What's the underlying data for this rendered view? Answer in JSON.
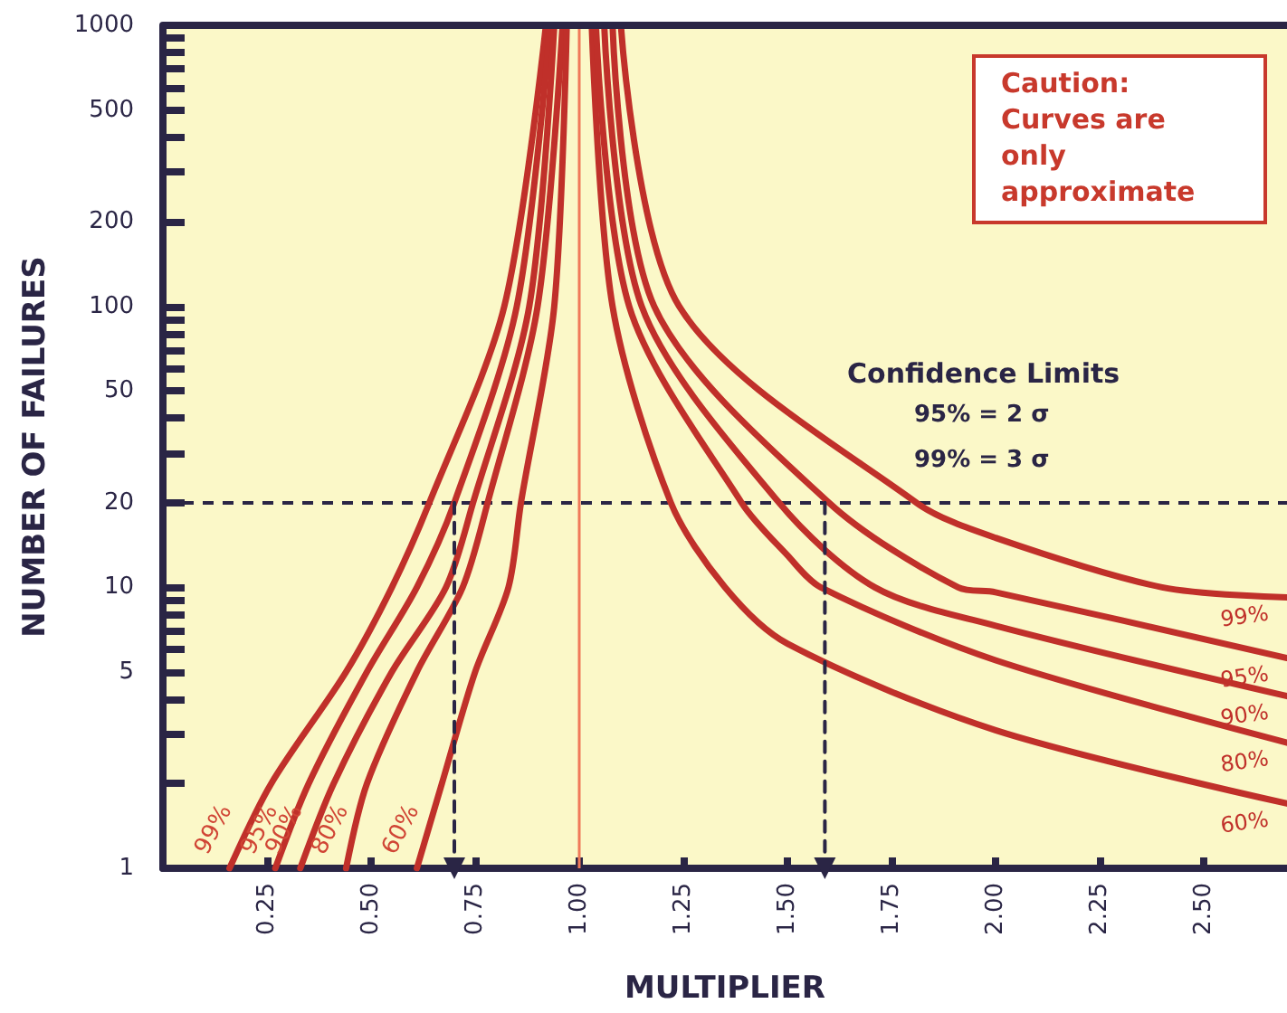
{
  "chart_data": {
    "type": "line",
    "xlabel": "MULTIPLIER",
    "ylabel": "NUMBER OF FAILURES",
    "annotations": [
      "Caution: Curves are only approximate",
      "Confidence Limits",
      "95% = 2 σ",
      "99% = 3 σ"
    ],
    "log": "y",
    "grid": false,
    "legend": false,
    "marker": "none",
    "xlim": [
      0,
      2.7
    ],
    "xticks": [
      {
        "value": 0.25,
        "label": "0.25"
      },
      {
        "value": 0.5,
        "label": "0.50"
      },
      {
        "value": 0.75,
        "label": "0.75"
      },
      {
        "value": 1,
        "label": "1.00"
      },
      {
        "value": 1.25,
        "label": "1.25"
      },
      {
        "value": 1.5,
        "label": "1.50"
      },
      {
        "value": 1.75,
        "label": "1.75"
      },
      {
        "value": 2,
        "label": "2.00"
      },
      {
        "value": 2.25,
        "label": "2.25"
      },
      {
        "value": 2.5,
        "label": "2.50"
      }
    ],
    "ylim": [
      1,
      1000
    ],
    "yticks": [
      1,
      {
        "value": 2,
        "label": null
      },
      {
        "value": 3,
        "label": null
      },
      {
        "value": 4,
        "label": null
      },
      5,
      {
        "value": 6,
        "label": null
      },
      {
        "value": 7,
        "label": null
      },
      {
        "value": 8,
        "label": null
      },
      {
        "value": 9,
        "label": null
      },
      10,
      20,
      {
        "value": 30,
        "label": null
      },
      {
        "value": 40,
        "label": null
      },
      50,
      {
        "value": 60,
        "label": null
      },
      {
        "value": 70,
        "label": null
      },
      {
        "value": 80,
        "label": null
      },
      {
        "value": 90,
        "label": null
      },
      100,
      200,
      {
        "value": 300,
        "label": null
      },
      {
        "value": 400,
        "label": null
      },
      500,
      {
        "value": 600,
        "label": null
      },
      {
        "value": 700,
        "label": null
      },
      {
        "value": 800,
        "label": null
      },
      {
        "value": 900,
        "label": null
      },
      1000
    ],
    "ref_lines": [
      {
        "axis": "x",
        "value": 1,
        "color": "#f07a5a"
      },
      {
        "axis": "y",
        "value": 20,
        "color": "#2a2545",
        "line_style": "dashed"
      }
    ],
    "series": [
      {
        "name": "99%",
        "color": "#c0302a",
        "x": [
          0.16,
          0.26,
          0.44,
          0.55,
          0.64,
          0.82,
          0.92
        ],
        "values": [
          1,
          2,
          5,
          10,
          20,
          100,
          1000
        ]
      },
      {
        "name": "95%",
        "color": "#c0302a",
        "x": [
          0.27,
          0.35,
          0.49,
          0.61,
          0.7,
          0.85,
          0.93
        ],
        "values": [
          1,
          2,
          5,
          10,
          20,
          100,
          1000
        ]
      },
      {
        "name": "90%",
        "color": "#c0302a",
        "x": [
          0.33,
          0.41,
          0.55,
          0.68,
          0.745,
          0.88,
          0.94
        ],
        "values": [
          1,
          2,
          5,
          10,
          20,
          100,
          1000
        ]
      },
      {
        "name": "80%",
        "color": "#c0302a",
        "x": [
          0.44,
          0.49,
          0.61,
          0.72,
          0.78,
          0.9,
          0.96
        ],
        "values": [
          1,
          2,
          5,
          10,
          20,
          100,
          1000
        ]
      },
      {
        "name": "60%",
        "color": "#c0302a",
        "x": [
          0.61,
          0.67,
          0.75,
          0.83,
          0.86,
          0.94,
          0.97
        ],
        "values": [
          1,
          2,
          5,
          10,
          20,
          100,
          1000
        ]
      },
      {
        "name": "60%",
        "color": "#c0302a",
        "x": [
          1.03,
          1.08,
          1.22,
          1.35,
          1.5,
          2.0,
          2.7
        ],
        "values": [
          1000,
          100,
          20,
          10,
          6.3,
          3.1,
          1.7
        ]
      },
      {
        "name": "80%",
        "color": "#c0302a",
        "x": [
          1.04,
          1.12,
          1.39,
          1.5,
          1.58,
          2.0,
          2.7
        ],
        "values": [
          1000,
          100,
          20,
          13,
          10,
          5.5,
          2.8
        ]
      },
      {
        "name": "90%",
        "color": "#c0302a",
        "x": [
          1.06,
          1.15,
          1.48,
          1.71,
          2.0,
          2.7
        ],
        "values": [
          1000,
          100,
          20,
          10,
          7.3,
          4.1
        ]
      },
      {
        "name": "95%",
        "color": "#c0302a",
        "x": [
          1.08,
          1.18,
          1.6,
          1.91,
          2.0,
          2.7
        ],
        "values": [
          1000,
          100,
          20,
          10,
          9.6,
          5.6
        ]
      },
      {
        "name": "99%",
        "color": "#c0302a",
        "x": [
          1.1,
          1.24,
          1.81,
          2.0,
          2.4,
          2.7
        ],
        "values": [
          1000,
          100,
          20,
          15,
          10,
          9.2
        ]
      },
      {
        "color": "#2a2545",
        "line_style": "dashed",
        "marker": "triangle",
        "x": [
          0.7,
          0.7
        ],
        "values": [
          20,
          1
        ]
      },
      {
        "color": "#2a2545",
        "line_style": "dashed",
        "marker": "triangle",
        "x": [
          1.59,
          1.59
        ],
        "values": [
          20,
          1
        ]
      }
    ]
  }
}
